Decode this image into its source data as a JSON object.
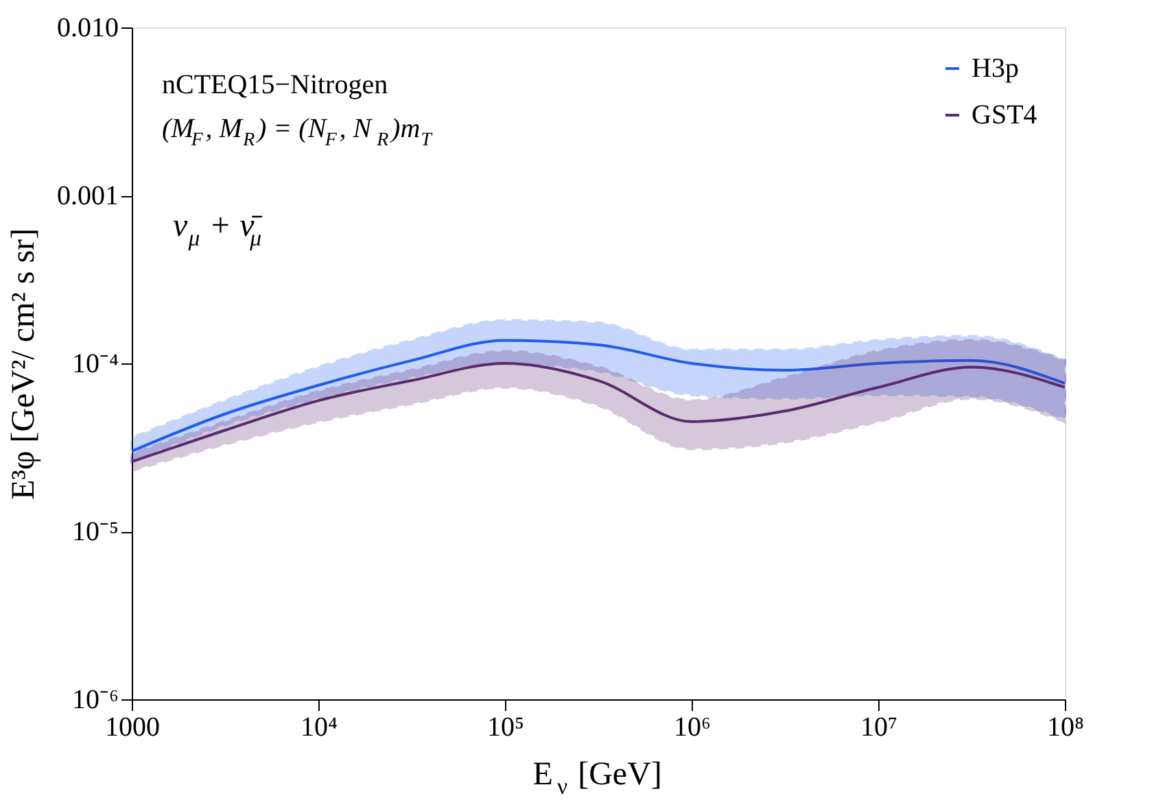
{
  "chart_data": {
    "type": "line",
    "x": [
      1000,
      3162,
      10000,
      31623,
      100000,
      316228,
      1000000,
      3162278,
      10000000,
      31622777,
      100000000
    ],
    "series": [
      {
        "name": "H3p",
        "color": "#1f5cf0",
        "values": [
          3e-05,
          5e-05,
          7.4e-05,
          0.000104,
          0.000137,
          0.000129,
          0.0001,
          9.1e-05,
          0.0001,
          0.000104,
          7.6e-05
        ],
        "lower": [
          2.6e-05,
          4.3e-05,
          6.2e-05,
          8.3e-05,
          0.0001,
          9e-05,
          6.5e-05,
          6.2e-05,
          6.5e-05,
          6.4e-05,
          4.7e-05
        ],
        "upper": [
          3.6e-05,
          6e-05,
          9.5e-05,
          0.000137,
          0.00018,
          0.000174,
          0.00012,
          0.00012,
          0.000137,
          0.000145,
          0.000104
        ]
      },
      {
        "name": "GST4",
        "color": "#5b2a6e",
        "values": [
          2.6e-05,
          4e-05,
          6e-05,
          7.9e-05,
          0.0001,
          7.9e-05,
          4.5e-05,
          5.2e-05,
          7.2e-05,
          9.5e-05,
          7.2e-05
        ],
        "lower": [
          2.3e-05,
          3.3e-05,
          4.5e-05,
          5.75e-05,
          7.2e-05,
          5.6e-05,
          3.1e-05,
          3.4e-05,
          4.5e-05,
          6.2e-05,
          4.5e-05
        ],
        "upper": [
          2.9e-05,
          4.5e-05,
          6.8e-05,
          9.1e-05,
          0.000118,
          9.5e-05,
          6e-05,
          8.2e-05,
          0.000118,
          0.000137,
          0.000104
        ]
      }
    ],
    "xlabel": "E$_{ν}$ [GeV]",
    "ylabel": "E³φ [GeV²/ cm² s sr]",
    "annotations": [
      "nCTEQ15−Nitrogen",
      "(M$_{F}$, M$_{R}$) = (N$_{F}$, N$_{R}$)m$_{T}$",
      "ν$_{μ}$ + ν̄$_{μ}$"
    ],
    "log": "xy",
    "xlim": [
      1000,
      100000000
    ],
    "xticks": [
      1000,
      {
        "value": 10000,
        "label": "10⁴"
      },
      {
        "value": 100000,
        "label": "10⁵"
      },
      {
        "value": 1000000,
        "label": "10⁶"
      },
      {
        "value": 10000000,
        "label": "10⁷"
      },
      {
        "value": 100000000,
        "label": "10⁸"
      }
    ],
    "ylim": [
      1e-06,
      0.01
    ],
    "yticks": [
      {
        "value": 1e-06,
        "label": "10⁻⁶"
      },
      {
        "value": 1e-05,
        "label": "10⁻⁵"
      },
      {
        "value": 0.0001,
        "label": "10⁻⁴"
      },
      0.001,
      {
        "value": 0.01,
        "label": "0.010"
      }
    ],
    "legend": "top right",
    "grid": false,
    "line_style": "solid",
    "marker": "none"
  }
}
